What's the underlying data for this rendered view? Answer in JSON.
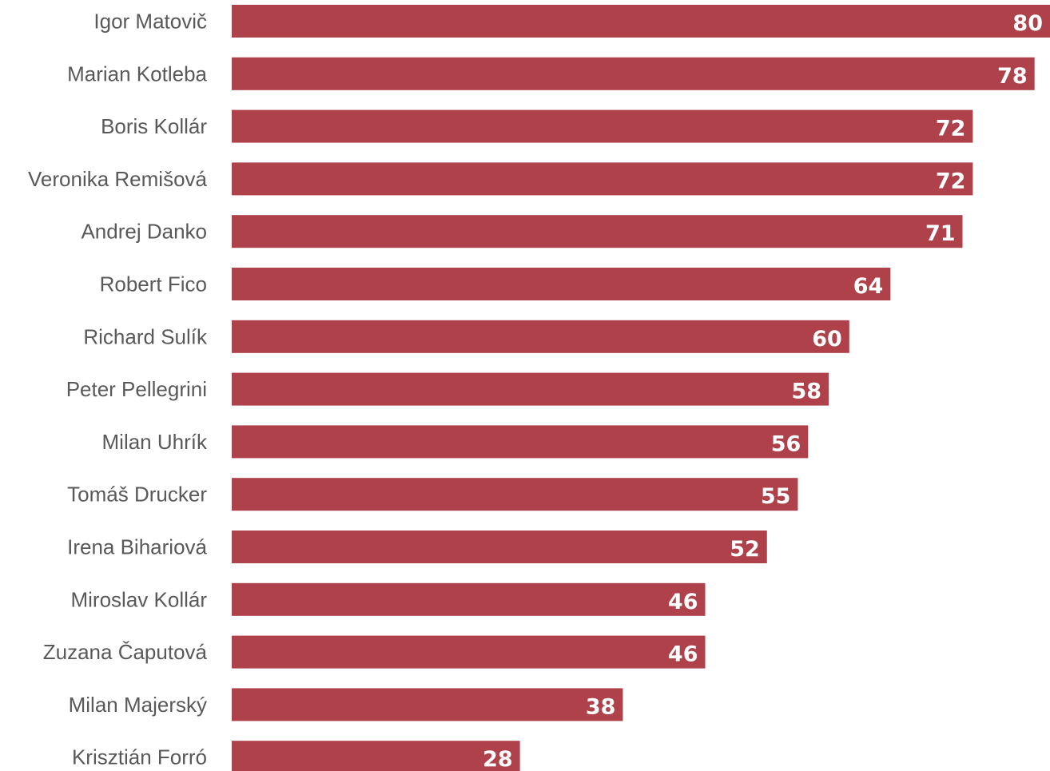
{
  "chart_data": {
    "type": "bar",
    "orientation": "horizontal",
    "categories": [
      "Igor Matovič",
      "Marian Kotleba",
      "Boris Kollár",
      "Veronika Remišová",
      "Andrej Danko",
      "Robert Fico",
      "Richard Sulík",
      "Peter Pellegrini",
      "Milan Uhrík",
      "Tomáš Drucker",
      "Irena Bihariová",
      "Miroslav Kollár",
      "Zuzana Čaputová",
      "Milan Majerský",
      "Krisztián Forró"
    ],
    "values": [
      80,
      78,
      72,
      72,
      71,
      64,
      60,
      58,
      56,
      55,
      52,
      46,
      46,
      38,
      28
    ],
    "value_labels": [
      "80",
      "78",
      "72",
      "72",
      "71",
      "64",
      "60",
      "58",
      "56",
      "55",
      "52",
      "46",
      "46",
      "38",
      "28"
    ],
    "bar_color": "#ae414a",
    "label_color": "#595959",
    "value_label_color": "#ffffff",
    "xlim": [
      0,
      79.5
    ],
    "grid": false,
    "legend": "none",
    "title": "",
    "xlabel": "",
    "ylabel": ""
  }
}
